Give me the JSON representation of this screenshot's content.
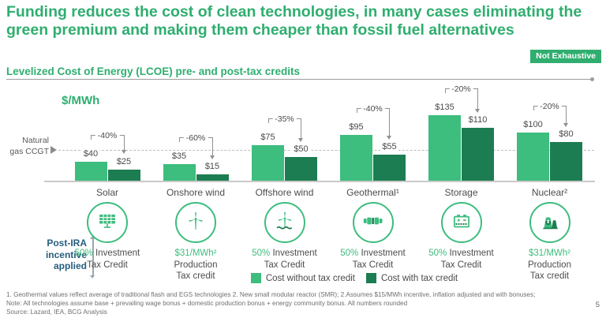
{
  "slide": {
    "title": "Funding reduces the cost of clean technologies, in many cases eliminating the green premium and making them cheaper than fossil fuel alternatives",
    "badge": "Not Exhaustive",
    "subtitle": "Levelized Cost of Energy (LCOE) pre- and post-tax credits",
    "page_number": "5"
  },
  "colors": {
    "accent_green": "#2fae6f",
    "bar_light_green": "#3dbd7e",
    "bar_dark_green": "#1d7d52",
    "steel_blue": "#265d7d",
    "badge_background": "#2fae6f"
  },
  "chart_data": {
    "type": "bar",
    "title": "Levelized Cost of Energy (LCOE) pre- and post-tax credits",
    "unit_label": "$/MWh",
    "categories": [
      "Solar",
      "Onshore wind",
      "Offshore wind",
      "Geothermal¹",
      "Storage",
      "Nuclear²"
    ],
    "series": [
      {
        "name": "Cost without tax credit",
        "color": "#3dbd7e",
        "values": [
          40,
          35,
          75,
          95,
          135,
          100
        ]
      },
      {
        "name": "Cost with tax credit",
        "color": "#1d7d52",
        "values": [
          25,
          15,
          50,
          55,
          110,
          80
        ]
      }
    ],
    "delta_labels": [
      "-40%",
      "-60%",
      "-35%",
      "-40%",
      "-20%",
      "-20%"
    ],
    "value_prefix": "$",
    "reference_line": {
      "label_lines": [
        "Natural",
        "gas CCGT"
      ],
      "value": 64
    },
    "ylim": [
      0,
      150
    ],
    "grid": false,
    "legend_position": "bottom"
  },
  "incentives": {
    "side_label_lines": [
      "Post-IRA",
      "incentive",
      "applied"
    ],
    "items": [
      {
        "icon": "solar-panel-icon",
        "highlight": "50%",
        "after_highlight": "Investment",
        "lines": [
          "Tax Credit"
        ]
      },
      {
        "icon": "wind-turbine-icon",
        "highlight": "$31/MWh²",
        "after_highlight": "",
        "lines": [
          "Production",
          "Tax credit"
        ]
      },
      {
        "icon": "offshore-wind-turbine-icon",
        "highlight": "50%",
        "after_highlight": "Investment",
        "lines": [
          "Tax Credit"
        ]
      },
      {
        "icon": "geothermal-pipe-icon",
        "highlight": "50%",
        "after_highlight": "Investment",
        "lines": [
          "Tax Credit"
        ]
      },
      {
        "icon": "battery-icon",
        "highlight": "50%",
        "after_highlight": "Investment",
        "lines": [
          "Tax Credit"
        ]
      },
      {
        "icon": "nuclear-plant-icon",
        "highlight": "$31/MWh²",
        "after_highlight": "",
        "lines": [
          "Production",
          "Tax credit"
        ]
      }
    ]
  },
  "footnotes": [
    "1. Geothermal values reflect average of traditional flash and EGS technologies 2. New small modular reactor (SMR);  2.Assumes $15/MWh incentive, inflation adjusted and with bonuses;",
    "Note: All technologies assume base + prevailing wage bonus + domestic production bonus + energy community bonus. All numbers rounded",
    "Source: Lazard, IEA, BCG Analysis"
  ]
}
